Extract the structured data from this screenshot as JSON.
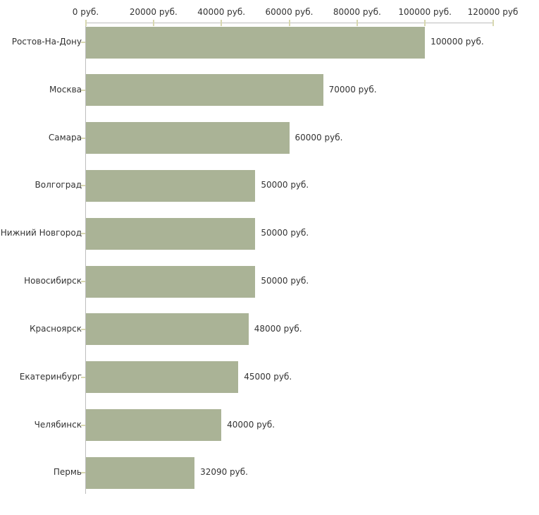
{
  "chart_data": {
    "type": "bar",
    "orientation": "horizontal",
    "title": "",
    "xlabel": "",
    "ylabel": "",
    "unit": "руб.",
    "categories": [
      "Ростов-На-Дону",
      "Москва",
      "Самара",
      "Волгоград",
      "Нижний Новгород",
      "Новосибирск",
      "Красноярск",
      "Екатеринбург",
      "Челябинск",
      "Пермь"
    ],
    "values": [
      100000,
      70000,
      60000,
      50000,
      50000,
      50000,
      48000,
      45000,
      40000,
      32090
    ],
    "value_labels": [
      "100000 руб.",
      "70000 руб.",
      "60000 руб.",
      "50000 руб.",
      "50000 руб.",
      "50000 руб.",
      "48000 руб.",
      "45000 руб.",
      "40000 руб.",
      "32090 руб."
    ],
    "x_axis": {
      "position": "top",
      "min": 0,
      "max": 120000,
      "ticks": [
        0,
        20000,
        40000,
        60000,
        80000,
        100000,
        120000
      ],
      "tick_labels": [
        "0 руб.",
        "20000 руб.",
        "40000 руб.",
        "60000 руб.",
        "80000 руб.",
        "100000 руб.",
        "120000 руб"
      ]
    },
    "grid": false,
    "legend": false,
    "colors": {
      "bar": "#aab396",
      "axis_line": "#bdbdbd",
      "tick": "#d8d8b0",
      "text": "#333333",
      "background": "#ffffff"
    }
  }
}
